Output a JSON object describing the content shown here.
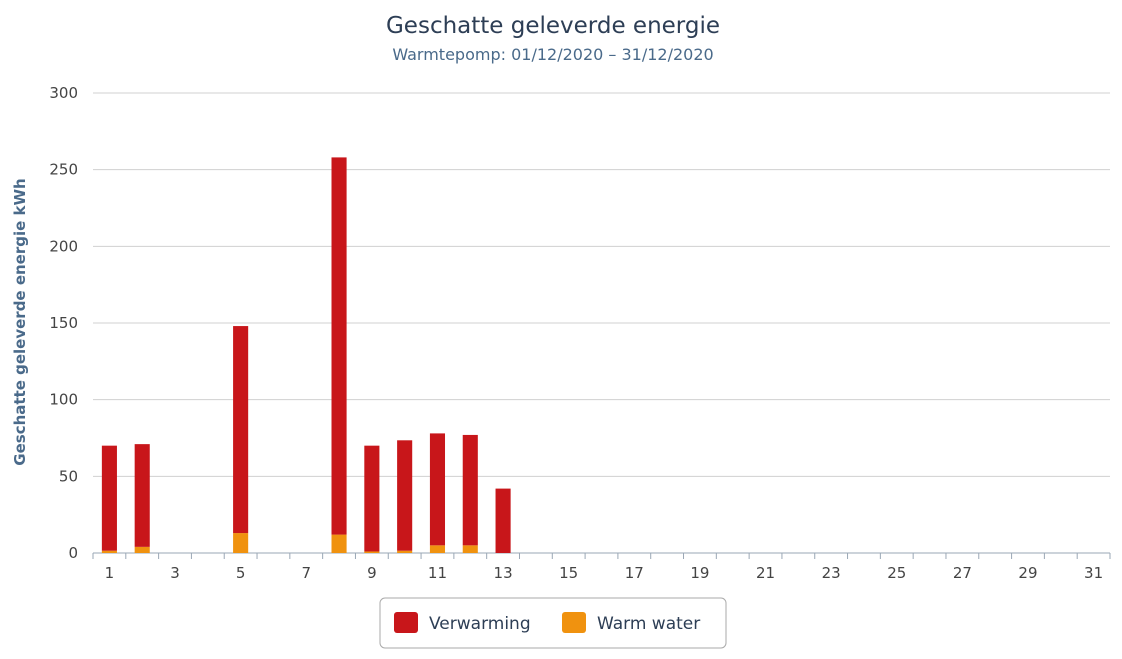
{
  "chart_data": {
    "type": "bar",
    "stacked": true,
    "title": "Geschatte geleverde energie",
    "subtitle": "Warmtepomp: 01/12/2020 – 31/12/2020",
    "ylabel": "Geschatte geleverde energie kWh",
    "xlabel": "",
    "ylim": [
      0,
      300
    ],
    "yticks": [
      0,
      50,
      100,
      150,
      200,
      250,
      300
    ],
    "grid": true,
    "legend_position": "bottom-center",
    "categories": [
      "1",
      "2",
      "3",
      "4",
      "5",
      "6",
      "7",
      "8",
      "9",
      "10",
      "11",
      "12",
      "13",
      "14",
      "15",
      "16",
      "17",
      "18",
      "19",
      "20",
      "21",
      "22",
      "23",
      "24",
      "25",
      "26",
      "27",
      "28",
      "29",
      "30",
      "31"
    ],
    "xtick_labels": [
      "1",
      "3",
      "5",
      "7",
      "9",
      "11",
      "13",
      "15",
      "17",
      "19",
      "21",
      "23",
      "25",
      "27",
      "29",
      "31"
    ],
    "series": [
      {
        "name": "Warm water",
        "color": "#f0920f",
        "values": [
          1.5,
          4,
          0,
          0,
          13,
          0,
          0,
          12,
          1,
          1.5,
          5,
          5,
          0,
          0,
          0,
          0,
          0,
          0,
          0,
          0,
          0,
          0,
          0,
          0,
          0,
          0,
          0,
          0,
          0,
          0,
          0
        ]
      },
      {
        "name": "Verwarming",
        "color": "#c8161a",
        "values": [
          68.5,
          67,
          0,
          0,
          135,
          0,
          0,
          246,
          69,
          72,
          73,
          72,
          42,
          0,
          0,
          0,
          0,
          0,
          0,
          0,
          0,
          0,
          0,
          0,
          0,
          0,
          0,
          0,
          0,
          0,
          0
        ]
      }
    ],
    "legend_order": [
      "Verwarming",
      "Warm water"
    ]
  }
}
